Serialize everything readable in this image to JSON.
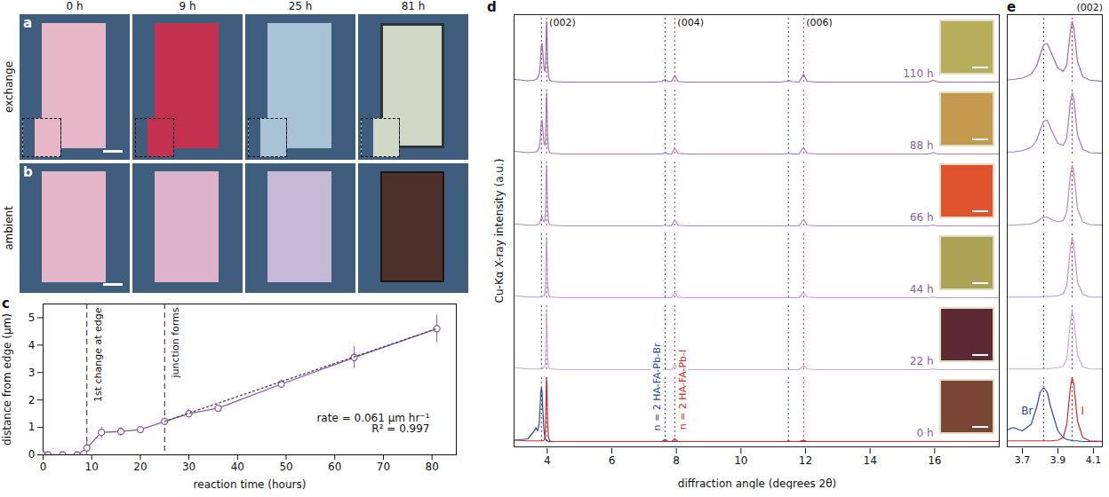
{
  "micrographs": {
    "columns": [
      "0 h",
      "9 h",
      "25 h",
      "81 h"
    ],
    "rows": [
      {
        "panel": "a",
        "label": "exchange"
      },
      {
        "panel": "b",
        "label": "ambient"
      }
    ]
  },
  "chart_data": [
    {
      "panel": "c",
      "type": "line",
      "x_label": "reaction time (hours)",
      "y_label": "distance from edge (µm)",
      "xlim": [
        0,
        85
      ],
      "xticks": [
        0,
        10,
        20,
        30,
        40,
        50,
        60,
        70,
        80
      ],
      "ylim": [
        0,
        5.5
      ],
      "yticks": [
        0,
        1,
        2,
        3,
        4,
        5
      ],
      "series": [
        {
          "color": "#8b5c9e",
          "marker": "circle",
          "x": [
            0,
            1,
            4,
            7,
            9,
            12,
            16,
            20,
            25,
            30,
            36,
            49,
            64,
            81
          ],
          "values": [
            0,
            0,
            0,
            0,
            0.25,
            0.82,
            0.85,
            0.92,
            1.22,
            1.5,
            1.7,
            2.58,
            3.55,
            4.6
          ],
          "errors": [
            0,
            0,
            0,
            0,
            0.35,
            0.2,
            0.15,
            0.1,
            0.12,
            0.15,
            0.08,
            0.15,
            0.4,
            0.5
          ]
        },
        {
          "color": "#4e3f5e",
          "line_style": "dotted",
          "x": [
            25,
            81
          ],
          "values": [
            1.22,
            4.6
          ]
        }
      ],
      "vlines": [
        {
          "x": 9,
          "label": "1st change at edge"
        },
        {
          "x": 25,
          "label": "junction forms"
        }
      ],
      "annotations": [
        "rate = 0.061 µm hr⁻¹",
        "R² = 0.997"
      ]
    },
    {
      "panel": "d",
      "type": "line",
      "x_label": "diffraction angle (degrees 2θ)",
      "y_label": "Cu-Kα X-ray intensity (a.u.)",
      "xlim": [
        3,
        18
      ],
      "xticks": [
        4,
        6,
        8,
        10,
        12,
        14,
        16
      ],
      "ylim": [
        0,
        1
      ],
      "tick_labels": "x",
      "x": [
        3.0,
        3.4,
        3.6,
        3.65,
        3.7,
        3.75,
        3.78,
        3.8,
        3.82,
        3.84,
        3.86,
        3.9,
        3.93,
        3.95,
        3.97,
        3.98,
        3.99,
        4.01,
        4.04,
        4.08,
        4.15,
        4.5,
        5.5,
        6.5,
        7.3,
        7.55,
        7.65,
        7.75,
        7.85,
        7.95,
        8.05,
        8.3,
        9.5,
        10.5,
        11.2,
        11.4,
        11.47,
        11.55,
        11.8,
        11.94,
        12.05,
        12.4,
        13.5,
        14.5,
        15.5,
        15.8,
        15.95,
        16.1,
        16.5,
        17.5,
        18.0
      ],
      "groups": [
        {
          "label": "110 h",
          "series": [
            {
              "color": "#9a6cae",
              "values": [
                0.08,
                0.06,
                0.07,
                0.08,
                0.1,
                0.16,
                0.28,
                0.45,
                0.6,
                0.62,
                0.5,
                0.25,
                0.2,
                0.3,
                0.8,
                0.95,
                0.85,
                0.35,
                0.12,
                0.07,
                0.05,
                0.04,
                0.04,
                0.04,
                0.04,
                0.05,
                0.08,
                0.05,
                0.05,
                0.14,
                0.05,
                0.04,
                0.04,
                0.04,
                0.04,
                0.05,
                0.07,
                0.05,
                0.04,
                0.16,
                0.05,
                0.04,
                0.04,
                0.04,
                0.04,
                0.04,
                0.07,
                0.04,
                0.04,
                0.04,
                0.04
              ]
            }
          ]
        },
        {
          "label": "88 h",
          "series": [
            {
              "color": "#a47cb8",
              "values": [
                0.08,
                0.06,
                0.07,
                0.07,
                0.09,
                0.14,
                0.24,
                0.4,
                0.53,
                0.55,
                0.42,
                0.2,
                0.17,
                0.28,
                0.82,
                0.96,
                0.86,
                0.33,
                0.11,
                0.06,
                0.05,
                0.04,
                0.04,
                0.04,
                0.04,
                0.04,
                0.06,
                0.04,
                0.04,
                0.13,
                0.05,
                0.04,
                0.04,
                0.04,
                0.04,
                0.04,
                0.05,
                0.04,
                0.04,
                0.14,
                0.05,
                0.04,
                0.04,
                0.04,
                0.04,
                0.04,
                0.06,
                0.04,
                0.04,
                0.04,
                0.04
              ]
            }
          ]
        },
        {
          "label": "66 h",
          "series": [
            {
              "color": "#b08cc2",
              "values": [
                0.07,
                0.05,
                0.05,
                0.05,
                0.06,
                0.07,
                0.1,
                0.14,
                0.17,
                0.17,
                0.14,
                0.1,
                0.12,
                0.25,
                0.8,
                0.95,
                0.84,
                0.3,
                0.1,
                0.06,
                0.05,
                0.04,
                0.04,
                0.04,
                0.04,
                0.04,
                0.05,
                0.04,
                0.04,
                0.13,
                0.05,
                0.04,
                0.04,
                0.04,
                0.04,
                0.04,
                0.04,
                0.04,
                0.04,
                0.14,
                0.05,
                0.04,
                0.04,
                0.04,
                0.04,
                0.04,
                0.05,
                0.04,
                0.04,
                0.04,
                0.04
              ]
            }
          ]
        },
        {
          "label": "44 h",
          "series": [
            {
              "color": "#bc9bcb",
              "values": [
                0.07,
                0.05,
                0.05,
                0.05,
                0.05,
                0.05,
                0.05,
                0.05,
                0.06,
                0.06,
                0.06,
                0.07,
                0.1,
                0.22,
                0.78,
                0.95,
                0.83,
                0.28,
                0.09,
                0.05,
                0.05,
                0.04,
                0.04,
                0.04,
                0.04,
                0.04,
                0.04,
                0.04,
                0.04,
                0.12,
                0.05,
                0.04,
                0.04,
                0.04,
                0.04,
                0.04,
                0.04,
                0.04,
                0.04,
                0.12,
                0.05,
                0.04,
                0.04,
                0.04,
                0.04,
                0.04,
                0.05,
                0.04,
                0.04,
                0.04,
                0.04
              ]
            }
          ]
        },
        {
          "label": "22 h",
          "series": [
            {
              "color": "#c8acd6",
              "values": [
                0.07,
                0.05,
                0.05,
                0.05,
                0.05,
                0.05,
                0.05,
                0.05,
                0.05,
                0.05,
                0.06,
                0.07,
                0.09,
                0.2,
                0.75,
                0.92,
                0.8,
                0.26,
                0.08,
                0.05,
                0.05,
                0.04,
                0.04,
                0.04,
                0.04,
                0.04,
                0.04,
                0.04,
                0.04,
                0.11,
                0.05,
                0.04,
                0.04,
                0.04,
                0.04,
                0.04,
                0.04,
                0.04,
                0.04,
                0.1,
                0.05,
                0.04,
                0.04,
                0.04,
                0.04,
                0.04,
                0.05,
                0.04,
                0.04,
                0.04,
                0.04
              ]
            }
          ]
        },
        {
          "label": "0 h",
          "series": [
            {
              "name": "Br",
              "color": "#3048a0",
              "values": [
                0.06,
                0.08,
                0.2,
                0.25,
                0.2,
                0.3,
                0.55,
                0.78,
                0.85,
                0.78,
                0.55,
                0.2,
                0.1,
                0.07,
                0.06,
                0.05,
                0.05,
                0.05,
                0.04,
                0.04,
                0.04,
                0.04,
                0.04,
                0.04,
                0.04,
                0.04,
                0.07,
                0.04,
                0.04,
                0.04,
                0.04,
                0.04,
                0.04,
                0.04,
                0.04,
                0.04,
                0.05,
                0.04,
                0.04,
                0.04,
                0.04,
                0.04,
                0.04,
                0.04,
                0.04,
                0.04,
                0.04,
                0.04,
                0.04,
                0.04,
                0.04
              ]
            },
            {
              "name": "I",
              "color": "#d42a2e",
              "values": [
                0.06,
                0.05,
                0.05,
                0.05,
                0.05,
                0.05,
                0.05,
                0.05,
                0.05,
                0.05,
                0.05,
                0.06,
                0.1,
                0.3,
                0.85,
                1.0,
                0.9,
                0.35,
                0.1,
                0.05,
                0.04,
                0.04,
                0.04,
                0.04,
                0.04,
                0.04,
                0.04,
                0.04,
                0.04,
                0.08,
                0.04,
                0.04,
                0.04,
                0.04,
                0.04,
                0.04,
                0.04,
                0.04,
                0.04,
                0.06,
                0.04,
                0.04,
                0.04,
                0.04,
                0.04,
                0.04,
                0.04,
                0.04,
                0.04,
                0.04,
                0.04
              ]
            }
          ]
        }
      ],
      "reference_lines": [
        {
          "name": "n = 2 HA-FA-Pb-Br",
          "color": "#3048a0",
          "x": [
            3.82,
            7.65,
            11.47
          ]
        },
        {
          "name": "n = 2 HA-FA-Pb-I",
          "color": "#d42a2e",
          "x": [
            3.98,
            7.95,
            11.94
          ]
        }
      ],
      "peak_labels": [
        {
          "label": "(002)",
          "x": 3.98
        },
        {
          "label": "(004)",
          "x": 7.95
        },
        {
          "label": "(006)",
          "x": 11.94
        }
      ],
      "zoom": {
        "panel": "e",
        "xlim": [
          3.62,
          4.15
        ],
        "xticks": [
          3.7,
          3.9,
          4.1
        ]
      }
    }
  ]
}
